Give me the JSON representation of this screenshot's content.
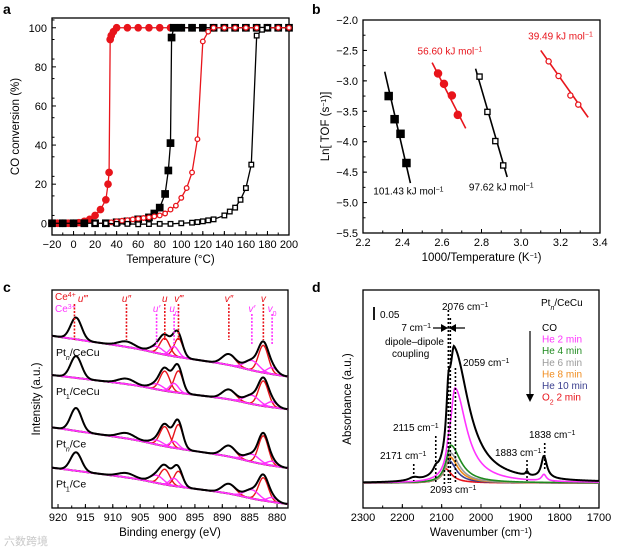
{
  "watermark": "六数跨境",
  "chart_data": [
    {
      "panel": "a",
      "type": "line",
      "xlabel": "Temperature (°C)",
      "ylabel": "CO conversion (%)",
      "xlim": [
        -20,
        200
      ],
      "ylim": [
        -6,
        105
      ],
      "xticks": [
        -20,
        0,
        20,
        40,
        60,
        80,
        100,
        120,
        140,
        160,
        180,
        200
      ],
      "yticks": [
        0,
        20,
        40,
        60,
        80,
        100
      ],
      "series": [
        {
          "color": "#e8141b",
          "marker": "circle",
          "filled": true,
          "x": [
            -20,
            -15,
            -10,
            -5,
            0,
            5,
            10,
            15,
            20,
            25,
            30,
            32,
            33,
            34,
            35,
            37,
            40,
            50,
            60,
            70,
            80,
            90,
            100,
            110,
            120,
            130,
            140,
            150,
            160,
            170,
            180,
            190,
            200
          ],
          "y": [
            0,
            0,
            0,
            0,
            0,
            0.3,
            1,
            2,
            4,
            7,
            12,
            20,
            26,
            94,
            96,
            98,
            100,
            100,
            100,
            100,
            100,
            100,
            100,
            100,
            100,
            100,
            100,
            100,
            100,
            100,
            100,
            100,
            100
          ]
        },
        {
          "color": "#000000",
          "marker": "square",
          "filled": true,
          "x": [
            -20,
            -10,
            0,
            10,
            20,
            30,
            40,
            50,
            60,
            70,
            75,
            80,
            85,
            88,
            90,
            91,
            93,
            100,
            110,
            120,
            130,
            140,
            150,
            160,
            170,
            180,
            190,
            200
          ],
          "y": [
            0,
            0,
            0,
            0,
            0,
            0,
            0.5,
            1,
            2,
            3,
            5,
            8,
            15,
            27,
            41,
            95,
            100,
            100,
            100,
            100,
            100,
            100,
            100,
            100,
            100,
            100,
            100,
            100
          ]
        },
        {
          "color": "#e8141b",
          "marker": "circle",
          "filled": false,
          "x": [
            20,
            30,
            35,
            40,
            45,
            50,
            55,
            60,
            65,
            70,
            75,
            80,
            85,
            90,
            95,
            100,
            105,
            110,
            115,
            120,
            125,
            130,
            140,
            150,
            160,
            170,
            180,
            190,
            200
          ],
          "y": [
            0,
            0,
            0.5,
            1,
            1.3,
            1.6,
            2,
            2.3,
            2.7,
            3,
            3.5,
            4,
            5,
            7,
            9,
            13,
            18,
            26,
            43,
            93,
            98,
            100,
            100,
            100,
            100,
            100,
            100,
            100,
            100
          ]
        },
        {
          "color": "#000000",
          "marker": "square",
          "filled": false,
          "x": [
            20,
            30,
            40,
            50,
            60,
            70,
            80,
            90,
            100,
            110,
            115,
            120,
            125,
            130,
            140,
            145,
            150,
            155,
            160,
            165,
            170,
            175,
            180
          ],
          "y": [
            0,
            0,
            -0.3,
            -0.3,
            -0.5,
            -0.4,
            -0.3,
            -0.3,
            0,
            0.3,
            0.6,
            1,
            1.5,
            2,
            4,
            6,
            8,
            12,
            18,
            30,
            96,
            99,
            100
          ]
        }
      ]
    },
    {
      "panel": "b",
      "type": "scatter",
      "xlabel": "1000/Temperature (K",
      "xlabel_sup": "−1",
      "xlabel_end": ")",
      "ylabel": "Ln[ TOF (s",
      "ylabel_sup": "−1",
      "ylabel_end": ")]",
      "xlim": [
        2.2,
        3.4
      ],
      "ylim": [
        -5.5,
        -2.0
      ],
      "xticks": [
        2.2,
        2.4,
        2.6,
        2.8,
        3.0,
        3.2,
        3.4
      ],
      "yticks": [
        -5.5,
        -5.0,
        -4.5,
        -4.0,
        -3.5,
        -3.0,
        -2.5,
        -2.0
      ],
      "series": [
        {
          "color": "#000000",
          "marker": "square",
          "filled": true,
          "x": [
            2.33,
            2.36,
            2.39,
            2.42
          ],
          "y": [
            -3.25,
            -3.63,
            -3.87,
            -4.35
          ],
          "fit": [
            [
              2.31,
              -2.85
            ],
            [
              2.44,
              -4.68
            ]
          ],
          "annotation": {
            "value": "101.43 kJ mol",
            "sup": "−1",
            "at": [
              2.43,
              -4.87
            ]
          }
        },
        {
          "color": "#e8141b",
          "marker": "circle",
          "filled": true,
          "x": [
            2.58,
            2.61,
            2.65,
            2.68
          ],
          "y": [
            -2.88,
            -3.05,
            -3.24,
            -3.56
          ],
          "fit": [
            [
              2.55,
              -2.7
            ],
            [
              2.72,
              -3.78
            ]
          ],
          "annotation": {
            "value": "56.60 kJ mol",
            "sup": "−1",
            "at": [
              2.64,
              -2.57
            ]
          }
        },
        {
          "color": "#000000",
          "marker": "square",
          "filled": false,
          "x": [
            2.79,
            2.83,
            2.87,
            2.91
          ],
          "y": [
            -2.93,
            -3.51,
            -3.99,
            -4.39
          ],
          "fit": [
            [
              2.77,
              -2.8
            ],
            [
              2.93,
              -4.58
            ]
          ],
          "annotation": {
            "value": "97.62 kJ mol",
            "sup": "−1",
            "at": [
              2.9,
              -4.8
            ]
          }
        },
        {
          "color": "#e8141b",
          "marker": "circle",
          "filled": false,
          "x": [
            3.14,
            3.19,
            3.25,
            3.29
          ],
          "y": [
            -2.68,
            -2.92,
            -3.24,
            -3.39
          ],
          "fit": [
            [
              3.1,
              -2.5
            ],
            [
              3.34,
              -3.6
            ]
          ],
          "annotation": {
            "value": "39.49 kJ mol",
            "sup": "−1",
            "at": [
              3.2,
              -2.32
            ]
          }
        }
      ]
    },
    {
      "panel": "c",
      "type": "line",
      "xlabel": "Binding energy (eV)",
      "ylabel": "Intensity (a.u.)",
      "xlim": [
        921.1,
        878
      ],
      "ylim": [
        0,
        10
      ],
      "xticks": [
        920,
        915,
        910,
        905,
        900,
        895,
        890,
        885,
        880
      ],
      "colors": {
        "Ce4+": "#e8141b",
        "Ce3+": "#ff33ff",
        "envelope": "#000000",
        "background": "#4b1040",
        "raw": "#2aa198"
      },
      "legend": [
        {
          "label": "Ce",
          "sup": "4+",
          "color": "#e8141b"
        },
        {
          "label": "Ce",
          "sup": "3+",
          "color": "#ff33ff"
        }
      ],
      "peak_labels": [
        {
          "label": "u‴",
          "center": 917.0,
          "state": "Ce4+"
        },
        {
          "label": "u″",
          "center": 907.5,
          "state": "Ce4+"
        },
        {
          "label": "u",
          "center": 900.5,
          "state": "Ce4+"
        },
        {
          "label": "v‴",
          "center": 898.0,
          "state": "Ce4+"
        },
        {
          "label": "v″",
          "center": 888.8,
          "state": "Ce4+"
        },
        {
          "label": "v",
          "center": 882.5,
          "state": "Ce4+"
        },
        {
          "label": "u′",
          "center": 902.0,
          "state": "Ce3+"
        },
        {
          "label": "u0",
          "center": 898.8,
          "state": "Ce3+"
        },
        {
          "label": "v′",
          "center": 884.6,
          "state": "Ce3+"
        },
        {
          "label": "v0",
          "center": 880.9,
          "state": "Ce3+"
        }
      ],
      "spectra": [
        {
          "label": {
            "main": "Pt",
            "sub": "n",
            "rest": "/CeCu"
          },
          "baseline": [
            7.9,
            6.3
          ],
          "peaks": [
            [
              916.7,
              1.0,
              1.0,
              "Ce4+"
            ],
            [
              907.5,
              0.25,
              1.5,
              "Ce4+"
            ],
            [
              900.5,
              0.75,
              0.9,
              "Ce4+"
            ],
            [
              898.0,
              0.85,
              0.8,
              "Ce4+"
            ],
            [
              888.8,
              0.5,
              1.2,
              "Ce4+"
            ],
            [
              882.5,
              1.25,
              0.9,
              "Ce4+"
            ],
            [
              902.0,
              0.3,
              1.2,
              "Ce3+"
            ],
            [
              898.8,
              0.45,
              0.8,
              "Ce3+"
            ],
            [
              884.6,
              0.45,
              1.3,
              "Ce3+"
            ],
            [
              880.9,
              0.3,
              0.9,
              "Ce3+"
            ]
          ]
        },
        {
          "label": {
            "main": "Pt",
            "sub": "1",
            "rest": "/CeCu"
          },
          "baseline": [
            6.1,
            4.8
          ],
          "peaks": [
            [
              916.7,
              1.0,
              1.0,
              "Ce4+"
            ],
            [
              907.5,
              0.25,
              1.5,
              "Ce4+"
            ],
            [
              900.5,
              0.9,
              0.9,
              "Ce4+"
            ],
            [
              898.0,
              1.0,
              0.8,
              "Ce4+"
            ],
            [
              888.8,
              0.45,
              1.2,
              "Ce4+"
            ],
            [
              882.5,
              1.15,
              0.9,
              "Ce4+"
            ],
            [
              902.0,
              0.25,
              1.2,
              "Ce3+"
            ],
            [
              898.8,
              0.4,
              0.8,
              "Ce3+"
            ],
            [
              884.6,
              0.4,
              1.3,
              "Ce3+"
            ],
            [
              880.9,
              0.25,
              0.9,
              "Ce3+"
            ]
          ]
        },
        {
          "label": {
            "main": "Pt",
            "sub": "n",
            "rest": "/Ce"
          },
          "baseline": [
            3.7,
            2.1
          ],
          "peaks": [
            [
              916.7,
              1.05,
              1.0,
              "Ce4+"
            ],
            [
              907.5,
              0.25,
              1.5,
              "Ce4+"
            ],
            [
              900.5,
              0.9,
              0.9,
              "Ce4+"
            ],
            [
              898.0,
              1.1,
              0.8,
              "Ce4+"
            ],
            [
              888.8,
              0.5,
              1.2,
              "Ce4+"
            ],
            [
              882.5,
              1.3,
              0.9,
              "Ce4+"
            ],
            [
              902.0,
              0.2,
              1.2,
              "Ce3+"
            ],
            [
              898.8,
              0.3,
              0.8,
              "Ce3+"
            ],
            [
              884.6,
              0.35,
              1.3,
              "Ce3+"
            ],
            [
              880.9,
              0.2,
              0.9,
              "Ce3+"
            ]
          ]
        },
        {
          "label": {
            "main": "Pt",
            "sub": "1",
            "rest": "/Ce"
          },
          "baseline": [
            1.85,
            0.45
          ],
          "peaks": [
            [
              916.7,
              0.85,
              1.0,
              "Ce4+"
            ],
            [
              907.5,
              0.2,
              1.5,
              "Ce4+"
            ],
            [
              900.5,
              0.7,
              0.9,
              "Ce4+"
            ],
            [
              898.0,
              0.7,
              0.8,
              "Ce4+"
            ],
            [
              888.8,
              0.45,
              1.2,
              "Ce4+"
            ],
            [
              882.5,
              1.05,
              0.9,
              "Ce4+"
            ],
            [
              902.0,
              0.35,
              1.2,
              "Ce3+"
            ],
            [
              898.8,
              0.35,
              0.8,
              "Ce3+"
            ],
            [
              884.6,
              0.4,
              1.3,
              "Ce3+"
            ],
            [
              880.9,
              0.2,
              0.9,
              "Ce3+"
            ]
          ]
        }
      ]
    },
    {
      "panel": "d",
      "type": "line",
      "xlabel": "Wavenumber (cm",
      "xlabel_sup": "−1",
      "xlabel_end": ")",
      "ylabel": "Absorbance (a.u.)",
      "xlim": [
        2300,
        1700
      ],
      "ylim": [
        -0.096,
        0.74
      ],
      "xticks": [
        2300,
        2200,
        2100,
        2000,
        1900,
        1800,
        1700
      ],
      "title": {
        "main": "Pt",
        "sub": "n",
        "rest": "/CeCu"
      },
      "scale_bar": {
        "label": "0.05",
        "value": 0.05
      },
      "series": [
        {
          "name": "CO",
          "color": "#000000",
          "comps": [
            [
              2068,
              0.5,
              15,
              45
            ],
            [
              2083,
              0.17,
              6,
              6
            ],
            [
              2115,
              0.02,
              8,
              8
            ],
            [
              2171,
              0.012,
              15,
              15
            ],
            [
              1883,
              0.015,
              4,
              4
            ],
            [
              1840,
              0.085,
              8,
              9
            ]
          ]
        },
        {
          "name": "He 2 min",
          "color": "#ff33ff",
          "comps": [
            [
              2066,
              0.36,
              14,
              35
            ],
            [
              2083,
              0.04,
              6,
              6
            ],
            [
              1840,
              0.025,
              7,
              7
            ]
          ]
        },
        {
          "name": "He 4 min",
          "color": "#1f8a1f",
          "comps": [
            [
              2077,
              0.145,
              14,
              30
            ]
          ]
        },
        {
          "name": "He 6 min",
          "color": "#9a9a9a",
          "comps": [
            [
              2078,
              0.115,
              14,
              27
            ]
          ]
        },
        {
          "name": "He 8 min",
          "color": "#f08c1e",
          "comps": [
            [
              2079,
              0.1,
              14,
              25
            ]
          ]
        },
        {
          "name": "He 10 min",
          "color": "#3b3f8f",
          "comps": [
            [
              2081,
              0.085,
              14,
              22
            ]
          ]
        },
        {
          "name": "O",
          "sub": "2",
          "rest": " 2 min",
          "color": "#e8141b",
          "comps": [
            [
              2091,
              0.055,
              14,
              20
            ]
          ]
        }
      ],
      "annotations": [
        {
          "text": "2076 cm",
          "sup": "−1"
        },
        {
          "text": "7 cm",
          "sup": "−1"
        },
        {
          "text": "dipole–dipole"
        },
        {
          "text": "coupling"
        },
        {
          "text": "2059 cm",
          "sup": "−1"
        },
        {
          "text": "2115 cm",
          "sup": "−1"
        },
        {
          "text": "2171 cm",
          "sup": "−1"
        },
        {
          "text": "2093 cm",
          "sup": "−1"
        },
        {
          "text": "1883 cm",
          "sup": "−1"
        },
        {
          "text": "1838 cm",
          "sup": "−1"
        }
      ]
    }
  ],
  "panel_letters": [
    "a",
    "b",
    "c",
    "d"
  ]
}
